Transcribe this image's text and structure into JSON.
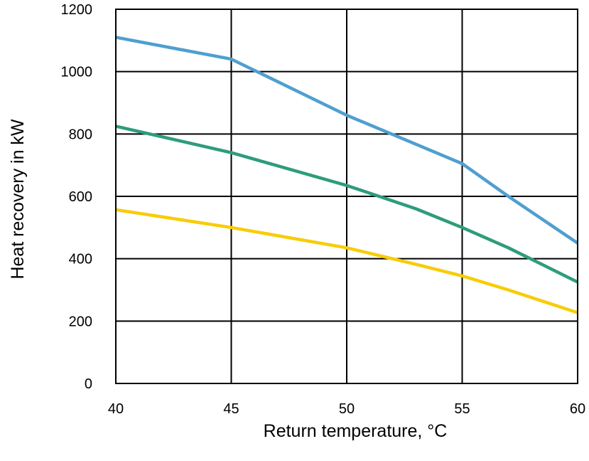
{
  "chart_data": {
    "type": "line",
    "xlabel": "Return temperature, °C",
    "ylabel": "Heat recovery in kW",
    "xlim": [
      40,
      60
    ],
    "ylim": [
      0,
      1200
    ],
    "x_ticks": [
      "40",
      "45",
      "50",
      "55",
      "60"
    ],
    "y_ticks": [
      "0",
      "200",
      "400",
      "600",
      "800",
      "1000",
      "1200"
    ],
    "grid": true,
    "legend": "none",
    "series": [
      {
        "color": "#4f9fd0",
        "points": [
          [
            40,
            1110
          ],
          [
            45,
            1040
          ],
          [
            50,
            860
          ],
          [
            55,
            705
          ],
          [
            57,
            600
          ],
          [
            60,
            450
          ]
        ]
      },
      {
        "color": "#2e9c7c",
        "points": [
          [
            40,
            825
          ],
          [
            45,
            740
          ],
          [
            50,
            635
          ],
          [
            53,
            560
          ],
          [
            55,
            500
          ],
          [
            57,
            435
          ],
          [
            60,
            325
          ]
        ]
      },
      {
        "color": "#f8cc08",
        "points": [
          [
            40,
            557
          ],
          [
            45,
            500
          ],
          [
            50,
            435
          ],
          [
            53,
            382
          ],
          [
            55,
            345
          ],
          [
            57,
            300
          ],
          [
            60,
            227
          ]
        ]
      }
    ]
  }
}
